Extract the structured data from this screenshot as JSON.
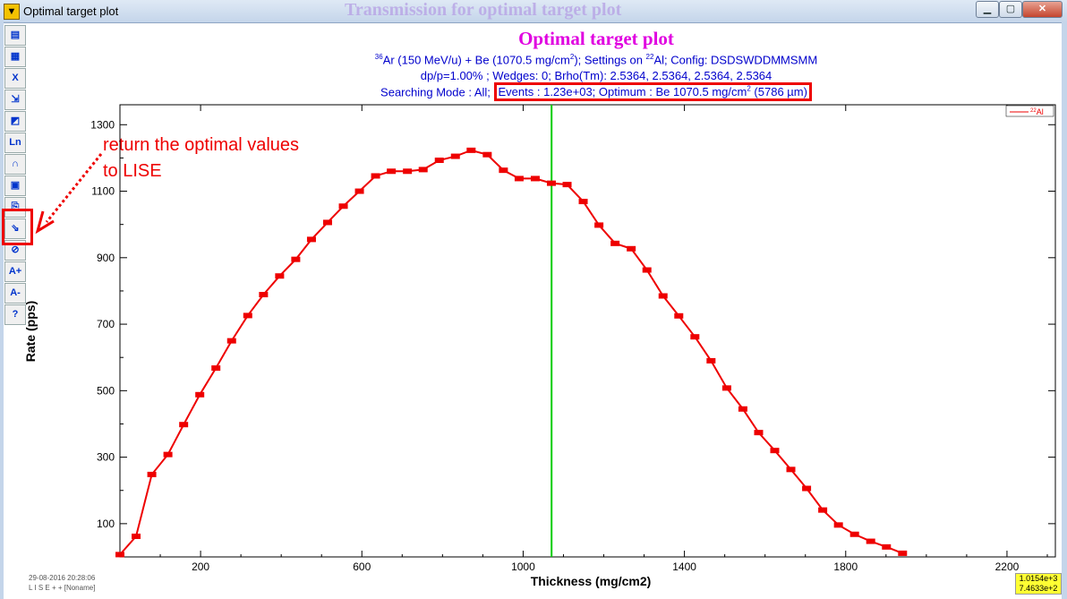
{
  "window": {
    "title": "Optimal target plot",
    "ghost_title": "Transmission for optimal target plot",
    "min_label": "▁",
    "max_label": "▢",
    "close_label": "✕"
  },
  "toolbar": [
    {
      "name": "print-icon",
      "glyph": "▤"
    },
    {
      "name": "print-setup-icon",
      "glyph": "▦"
    },
    {
      "name": "close-plot-icon",
      "glyph": "X"
    },
    {
      "name": "zoom-icon",
      "glyph": "⇲"
    },
    {
      "name": "color-icon",
      "glyph": "◩"
    },
    {
      "name": "log-scale-icon",
      "glyph": "Ln"
    },
    {
      "name": "fit-icon",
      "glyph": "∩"
    },
    {
      "name": "dimensions-icon",
      "glyph": "▣"
    },
    {
      "name": "copy-icon",
      "glyph": "⎘"
    },
    {
      "name": "return-to-lise-icon",
      "glyph": "⇘"
    },
    {
      "name": "hide-icon",
      "glyph": "⊘"
    },
    {
      "name": "font-increase-icon",
      "glyph": "A+"
    },
    {
      "name": "font-decrease-icon",
      "glyph": "A-"
    },
    {
      "name": "help-icon",
      "glyph": "?"
    }
  ],
  "annotation": {
    "line1": "return the optimal values",
    "line2": "to LISE"
  },
  "chart_data": {
    "type": "line",
    "title": "Optimal target plot",
    "subtitle_lines": {
      "line1": {
        "sup1": "36",
        "part1": "Ar (150 MeV/u) + Be (1070.5 mg/cm",
        "sup2": "2",
        "part2": ");  Settings on ",
        "sup3": "22",
        "part3": "Al;  Config: DSDSWDDMMSMM"
      },
      "line2": "dp/p=1.00% ; Wedges: 0; Brho(Tm): 2.5364, 2.5364, 2.5364, 2.5364",
      "line3_prefix": "Searching Mode : All; ",
      "line3_boxed_a": "Events : 1.23e+03; Optimum : Be 1070.5 mg/cm",
      "line3_sup": "2",
      "line3_boxed_b": " (5786 µm)"
    },
    "xlabel": "Thickness (mg/cm2)",
    "ylabel": "Rate (pps)",
    "xlim": [
      0,
      2320
    ],
    "ylim": [
      0,
      1360
    ],
    "x_ticks": [
      200,
      600,
      1000,
      1400,
      1800,
      2200
    ],
    "y_ticks": [
      100,
      300,
      500,
      700,
      900,
      1100,
      1300
    ],
    "optimum_x": 1070.5,
    "colors": {
      "series": "#ee0000",
      "optimum_line": "#00cc00",
      "axis": "#000000",
      "title": "#e000e0",
      "subtitle": "#0000cc"
    },
    "legend": {
      "position": "top-right",
      "sup": "22",
      "label": "Al"
    },
    "series": [
      {
        "name": "22Al",
        "points": [
          [
            0,
            7
          ],
          [
            40,
            62
          ],
          [
            79,
            248
          ],
          [
            119,
            308
          ],
          [
            158,
            398
          ],
          [
            198,
            488
          ],
          [
            238,
            568
          ],
          [
            277,
            650
          ],
          [
            317,
            726
          ],
          [
            356,
            789
          ],
          [
            396,
            845
          ],
          [
            436,
            895
          ],
          [
            475,
            955
          ],
          [
            515,
            1006
          ],
          [
            554,
            1055
          ],
          [
            594,
            1100
          ],
          [
            634,
            1146
          ],
          [
            673,
            1160
          ],
          [
            713,
            1160
          ],
          [
            752,
            1165
          ],
          [
            792,
            1193
          ],
          [
            832,
            1205
          ],
          [
            871,
            1223
          ],
          [
            911,
            1210
          ],
          [
            951,
            1163
          ],
          [
            990,
            1138
          ],
          [
            1030,
            1138
          ],
          [
            1070,
            1124
          ],
          [
            1109,
            1120
          ],
          [
            1149,
            1069
          ],
          [
            1188,
            998
          ],
          [
            1228,
            943
          ],
          [
            1268,
            927
          ],
          [
            1307,
            863
          ],
          [
            1347,
            785
          ],
          [
            1386,
            725
          ],
          [
            1426,
            662
          ],
          [
            1466,
            590
          ],
          [
            1505,
            508
          ],
          [
            1545,
            445
          ],
          [
            1584,
            374
          ],
          [
            1624,
            320
          ],
          [
            1664,
            263
          ],
          [
            1703,
            206
          ],
          [
            1743,
            141
          ],
          [
            1782,
            96
          ],
          [
            1822,
            68
          ],
          [
            1862,
            47
          ],
          [
            1901,
            30
          ],
          [
            1941,
            11
          ]
        ]
      }
    ]
  },
  "footer": {
    "timestamp": "29-08-2016  20:28:06",
    "app": "L I S E + +   [Noname]"
  },
  "cursor_readout": {
    "x": "1.0154e+3",
    "y": "7.4633e+2"
  }
}
